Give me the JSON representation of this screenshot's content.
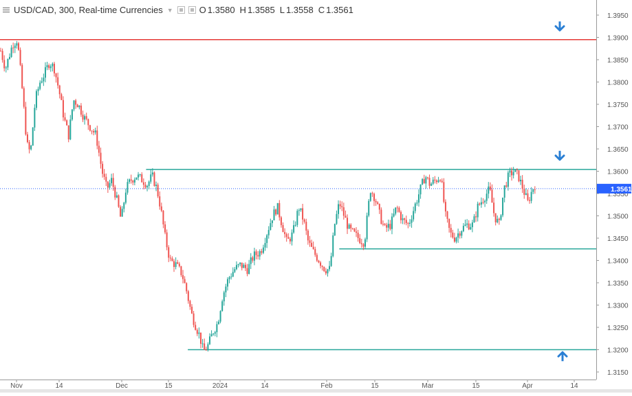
{
  "header": {
    "symbol": "USD/CAD, 300, Real-time Currencies",
    "open_label": "O",
    "open": "1.3580",
    "high_label": "H",
    "high": "1.3585",
    "low_label": "L",
    "low": "1.3558",
    "close_label": "C",
    "close": "1.3561"
  },
  "chart_data": {
    "type": "candlestick",
    "ylim": [
      1.3125,
      1.3975
    ],
    "y_ticks": [
      "1.3950",
      "1.3900",
      "1.3850",
      "1.3800",
      "1.3750",
      "1.3700",
      "1.3650",
      "1.3600",
      "1.3550",
      "1.3500",
      "1.3450",
      "1.3400",
      "1.3350",
      "1.3300",
      "1.3250",
      "1.3200",
      "1.3150"
    ],
    "x_ticks": [
      "Nov",
      "14",
      "Dec",
      "15",
      "2024",
      "14",
      "Feb",
      "15",
      "Mar",
      "15",
      "Apr",
      "14"
    ],
    "last_price": {
      "value": 1.3561,
      "label": "1.3561"
    },
    "levels": [
      {
        "value": 1.3895,
        "color": "#e53935",
        "from": 0.0,
        "to": 1.0
      },
      {
        "value": 1.3604,
        "color": "#26a69a",
        "from": 0.245,
        "to": 1.0
      },
      {
        "value": 1.3426,
        "color": "#26a69a",
        "from": 0.569,
        "to": 1.0
      },
      {
        "value": 1.32,
        "color": "#26a69a",
        "from": 0.315,
        "to": 1.0
      }
    ],
    "arrows": [
      {
        "direction": "down",
        "price": 1.3925
      },
      {
        "direction": "down",
        "price": 1.3635
      },
      {
        "direction": "up",
        "price": 1.3185
      }
    ],
    "path": [
      [
        0.0,
        1.387
      ],
      [
        0.008,
        1.383
      ],
      [
        0.02,
        1.3885
      ],
      [
        0.028,
        1.3895
      ],
      [
        0.035,
        1.38
      ],
      [
        0.044,
        1.366
      ],
      [
        0.05,
        1.364
      ],
      [
        0.058,
        1.376
      ],
      [
        0.066,
        1.38
      ],
      [
        0.074,
        1.382
      ],
      [
        0.082,
        1.3845
      ],
      [
        0.09,
        1.383
      ],
      [
        0.098,
        1.378
      ],
      [
        0.106,
        1.372
      ],
      [
        0.114,
        1.368
      ],
      [
        0.122,
        1.376
      ],
      [
        0.13,
        1.375
      ],
      [
        0.14,
        1.372
      ],
      [
        0.15,
        1.37
      ],
      [
        0.16,
        1.368
      ],
      [
        0.17,
        1.36
      ],
      [
        0.178,
        1.356
      ],
      [
        0.186,
        1.358
      ],
      [
        0.194,
        1.354
      ],
      [
        0.202,
        1.349
      ],
      [
        0.21,
        1.356
      ],
      [
        0.218,
        1.358
      ],
      [
        0.228,
        1.359
      ],
      [
        0.238,
        1.358
      ],
      [
        0.246,
        1.357
      ],
      [
        0.254,
        1.359
      ],
      [
        0.262,
        1.356
      ],
      [
        0.268,
        1.352
      ],
      [
        0.276,
        1.345
      ],
      [
        0.284,
        1.34
      ],
      [
        0.294,
        1.339
      ],
      [
        0.304,
        1.337
      ],
      [
        0.312,
        1.333
      ],
      [
        0.32,
        1.328
      ],
      [
        0.328,
        1.325
      ],
      [
        0.334,
        1.323
      ],
      [
        0.34,
        1.3195
      ],
      [
        0.348,
        1.321
      ],
      [
        0.356,
        1.324
      ],
      [
        0.364,
        1.326
      ],
      [
        0.372,
        1.332
      ],
      [
        0.382,
        1.336
      ],
      [
        0.392,
        1.338
      ],
      [
        0.402,
        1.339
      ],
      [
        0.414,
        1.338
      ],
      [
        0.424,
        1.341
      ],
      [
        0.436,
        1.342
      ],
      [
        0.446,
        1.346
      ],
      [
        0.456,
        1.35
      ],
      [
        0.464,
        1.352
      ],
      [
        0.472,
        1.348
      ],
      [
        0.48,
        1.344
      ],
      [
        0.49,
        1.346
      ],
      [
        0.5,
        1.352
      ],
      [
        0.508,
        1.349
      ],
      [
        0.516,
        1.344
      ],
      [
        0.524,
        1.342
      ],
      [
        0.534,
        1.34
      ],
      [
        0.544,
        1.338
      ],
      [
        0.552,
        1.338
      ],
      [
        0.56,
        1.348
      ],
      [
        0.568,
        1.353
      ],
      [
        0.576,
        1.35
      ],
      [
        0.584,
        1.347
      ],
      [
        0.592,
        1.346
      ],
      [
        0.6,
        1.345
      ],
      [
        0.61,
        1.344
      ],
      [
        0.62,
        1.356
      ],
      [
        0.628,
        1.354
      ],
      [
        0.636,
        1.35
      ],
      [
        0.644,
        1.347
      ],
      [
        0.654,
        1.348
      ],
      [
        0.664,
        1.352
      ],
      [
        0.674,
        1.349
      ],
      [
        0.684,
        1.348
      ],
      [
        0.694,
        1.352
      ],
      [
        0.704,
        1.356
      ],
      [
        0.712,
        1.359
      ],
      [
        0.72,
        1.357
      ],
      [
        0.73,
        1.358
      ],
      [
        0.738,
        1.359
      ],
      [
        0.746,
        1.35
      ],
      [
        0.754,
        1.346
      ],
      [
        0.762,
        1.345
      ],
      [
        0.772,
        1.347
      ],
      [
        0.782,
        1.348
      ],
      [
        0.792,
        1.348
      ],
      [
        0.8,
        1.352
      ],
      [
        0.81,
        1.354
      ],
      [
        0.82,
        1.356
      ],
      [
        0.828,
        1.35
      ],
      [
        0.836,
        1.348
      ],
      [
        0.844,
        1.356
      ],
      [
        0.852,
        1.359
      ],
      [
        0.86,
        1.36
      ],
      [
        0.868,
        1.359
      ],
      [
        0.876,
        1.356
      ],
      [
        0.884,
        1.353
      ],
      [
        0.892,
        1.356
      ],
      [
        0.896,
        1.357
      ]
    ]
  }
}
